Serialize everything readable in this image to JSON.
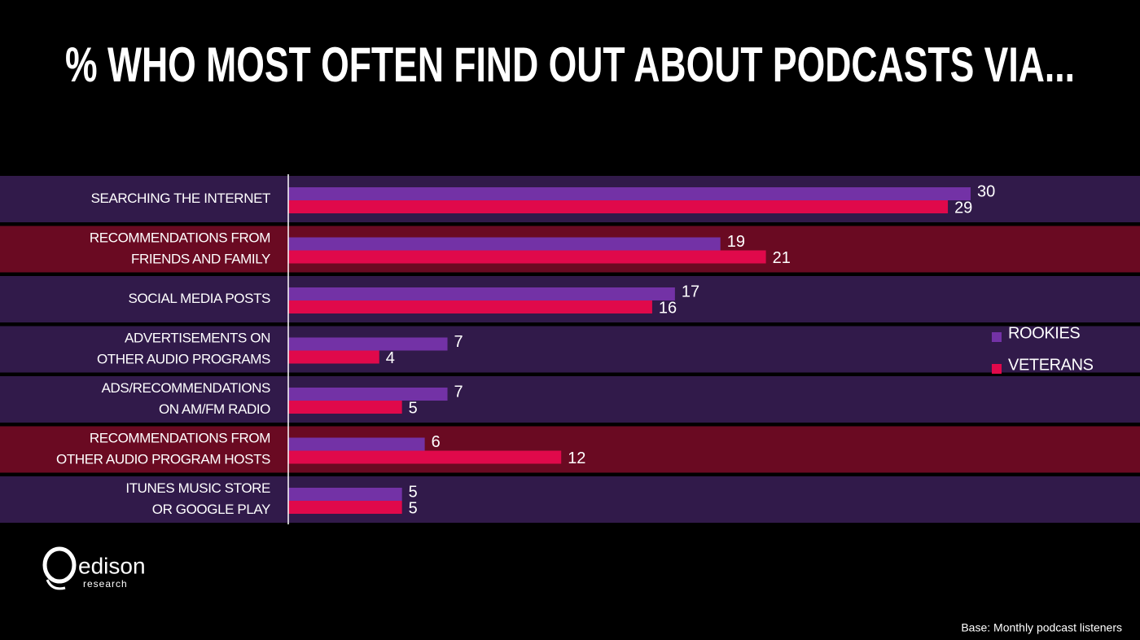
{
  "chart_data": {
    "type": "bar",
    "orientation": "horizontal",
    "title": "% WHO MOST OFTEN FIND OUT ABOUT PODCASTS VIA...",
    "categories": [
      [
        "SEARCHING THE INTERNET"
      ],
      [
        "RECOMMENDATIONS FROM",
        "FRIENDS AND FAMILY"
      ],
      [
        "SOCIAL MEDIA POSTS"
      ],
      [
        "ADVERTISEMENTS ON",
        "OTHER AUDIO PROGRAMS"
      ],
      [
        "ADS/RECOMMENDATIONS",
        "ON AM/FM RADIO"
      ],
      [
        "RECOMMENDATIONS FROM",
        "OTHER AUDIO PROGRAM HOSTS"
      ],
      [
        "ITUNES MUSIC STORE",
        "OR GOOGLE PLAY"
      ]
    ],
    "row_colors": [
      "#311a4a",
      "#6a0a22",
      "#311a4a",
      "#311a4a",
      "#311a4a",
      "#6a0a22",
      "#311a4a"
    ],
    "series": [
      {
        "name": "ROOKIES",
        "color": "#7332a6",
        "values": [
          30,
          19,
          17,
          7,
          7,
          6,
          5
        ]
      },
      {
        "name": "VETERANS",
        "color": "#e0094b",
        "values": [
          29,
          21,
          16,
          4,
          5,
          12,
          5
        ]
      }
    ],
    "legend": "right",
    "note": "Base: Monthly podcast listeners",
    "logo": {
      "name": "edison",
      "subtitle": "research"
    }
  }
}
